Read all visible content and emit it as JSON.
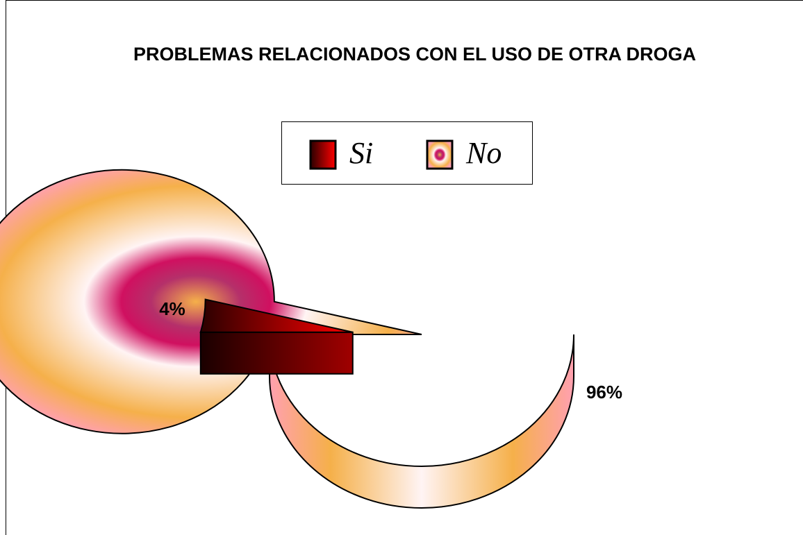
{
  "chart_data": {
    "type": "pie",
    "title": "PROBLEMAS RELACIONADOS CON EL USO DE OTRA DROGA",
    "categories": [
      "Si",
      "No"
    ],
    "values": [
      4,
      96
    ],
    "value_labels": [
      "4%",
      "96%"
    ],
    "colors": [
      "#e00000",
      "#f5b04a"
    ]
  }
}
